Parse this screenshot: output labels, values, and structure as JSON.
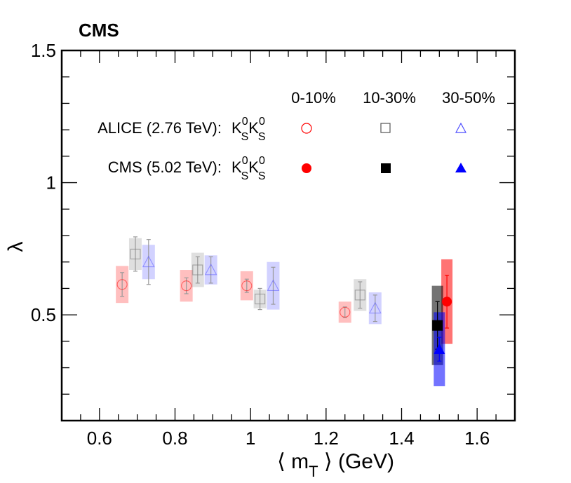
{
  "chart_data": {
    "type": "scatter",
    "experiment_label": "CMS",
    "xlabel": "⟨ m_T ⟩ (GeV)",
    "xlabel_parts": {
      "open": "⟨",
      "var": "m",
      "sub": "T",
      "close": "⟩",
      "unit": "(GeV)"
    },
    "ylabel": "λ",
    "xlim": [
      0.5,
      1.7
    ],
    "ylim": [
      0.1,
      1.5
    ],
    "x_ticks": [
      0.6,
      0.8,
      1.0,
      1.2,
      1.4,
      1.6
    ],
    "x_tick_labels": [
      "0.6",
      "0.8",
      "1",
      "1.2",
      "1.4",
      "1.6"
    ],
    "y_ticks": [
      0.5,
      1.0,
      1.5
    ],
    "y_tick_labels": [
      "0.5",
      "1",
      "1.5"
    ],
    "legend": {
      "headers": [
        "0-10%",
        "10-30%",
        "30-50%"
      ],
      "rows": [
        {
          "label": "ALICE (2.76 TeV):",
          "particle": "K",
          "sup": "0",
          "sub": "S",
          "filled": false
        },
        {
          "label": "CMS (5.02 TeV):",
          "particle": "K",
          "sup": "0",
          "sub": "S",
          "filled": true
        }
      ]
    },
    "series": [
      {
        "name": "ALICE 0-10%",
        "experiment": "ALICE",
        "centrality": "0-10%",
        "marker": "circle",
        "filled": false,
        "color": "#ff0000",
        "points": [
          {
            "x": 0.66,
            "y": 0.615,
            "stat": 0.045,
            "sys": 0.07
          },
          {
            "x": 0.83,
            "y": 0.61,
            "stat": 0.03,
            "sys": 0.06
          },
          {
            "x": 0.99,
            "y": 0.61,
            "stat": 0.025,
            "sys": 0.055
          },
          {
            "x": 1.25,
            "y": 0.51,
            "stat": 0.02,
            "sys": 0.04
          }
        ]
      },
      {
        "name": "ALICE 10-30%",
        "experiment": "ALICE",
        "centrality": "10-30%",
        "marker": "square",
        "filled": false,
        "color": "#808080",
        "points": [
          {
            "x": 0.695,
            "y": 0.73,
            "stat": 0.065,
            "sys": 0.06
          },
          {
            "x": 0.86,
            "y": 0.67,
            "stat": 0.05,
            "sys": 0.065
          },
          {
            "x": 1.025,
            "y": 0.56,
            "stat": 0.04,
            "sys": 0.035
          },
          {
            "x": 1.29,
            "y": 0.575,
            "stat": 0.05,
            "sys": 0.06
          }
        ]
      },
      {
        "name": "ALICE 30-50%",
        "experiment": "ALICE",
        "centrality": "30-50%",
        "marker": "triangle",
        "filled": false,
        "color": "#4d4dff",
        "points": [
          {
            "x": 0.73,
            "y": 0.7,
            "stat": 0.085,
            "sys": 0.065
          },
          {
            "x": 0.895,
            "y": 0.67,
            "stat": 0.05,
            "sys": 0.055
          },
          {
            "x": 1.06,
            "y": 0.61,
            "stat": 0.07,
            "sys": 0.09
          },
          {
            "x": 1.33,
            "y": 0.525,
            "stat": 0.05,
            "sys": 0.06
          }
        ]
      },
      {
        "name": "CMS 0-10%",
        "experiment": "CMS",
        "centrality": "0-10%",
        "marker": "circle",
        "filled": true,
        "color": "#ff0000",
        "points": [
          {
            "x": 1.52,
            "y": 0.55,
            "stat": 0.1,
            "sys": 0.16
          }
        ]
      },
      {
        "name": "CMS 10-30%",
        "experiment": "CMS",
        "centrality": "10-30%",
        "marker": "square",
        "filled": true,
        "color": "#000000",
        "points": [
          {
            "x": 1.495,
            "y": 0.46,
            "stat": 0.09,
            "sys": 0.15
          }
        ]
      },
      {
        "name": "CMS 30-50%",
        "experiment": "CMS",
        "centrality": "30-50%",
        "marker": "triangle",
        "filled": true,
        "color": "#0000ff",
        "points": [
          {
            "x": 1.5,
            "y": 0.37,
            "stat": 0.045,
            "sys": 0.14
          }
        ]
      }
    ]
  }
}
